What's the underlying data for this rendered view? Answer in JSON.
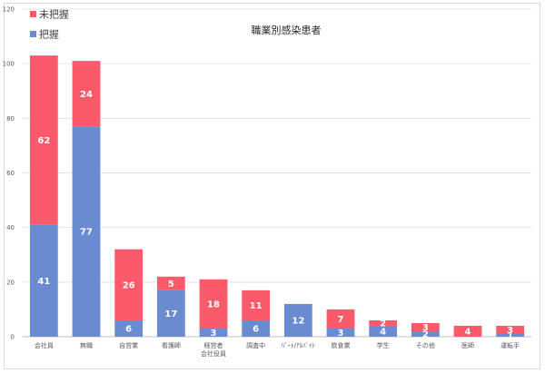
{
  "chart_data": {
    "type": "bar",
    "stacked": true,
    "title": "職業別感染患者",
    "categories": [
      [
        "会社員"
      ],
      [
        "無職"
      ],
      [
        "自営業"
      ],
      [
        "看護師"
      ],
      [
        "経営者",
        "会社役員"
      ],
      [
        "調査中"
      ],
      [
        "ﾊﾟｰﾄ/ｱﾙﾊﾞｲﾄ"
      ],
      [
        "飲食業"
      ],
      [
        "学生"
      ],
      [
        "その他"
      ],
      [
        "医師"
      ],
      [
        "運転手"
      ]
    ],
    "series": [
      {
        "name": "把握",
        "color": "#6a8bd0",
        "values": [
          41,
          77,
          6,
          17,
          3,
          6,
          12,
          3,
          4,
          2,
          0,
          1
        ]
      },
      {
        "name": "未把握",
        "color": "#fa5a6a",
        "values": [
          62,
          24,
          26,
          5,
          18,
          11,
          0,
          7,
          2,
          3,
          4,
          3
        ]
      }
    ],
    "ylim": [
      0,
      120
    ],
    "yticks": [
      0,
      20,
      40,
      60,
      80,
      100,
      120
    ],
    "grid": true,
    "legend_position": "top-left"
  }
}
